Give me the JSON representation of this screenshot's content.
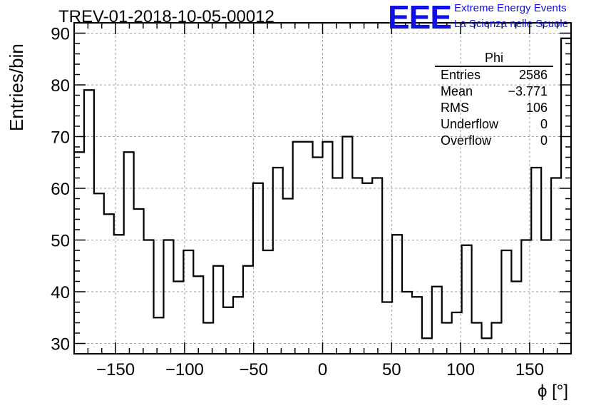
{
  "title": "TREV-01-2018-10-05-00012",
  "logo": {
    "mark": "EEE",
    "line1": "Extreme Energy Events",
    "line2": "La Scienza nelle Scuole",
    "color": "#1010e6"
  },
  "stats": {
    "title": "Phi",
    "rows": [
      {
        "label": "Entries",
        "value": "2586"
      },
      {
        "label": "Mean",
        "value": "−3.771"
      },
      {
        "label": "RMS",
        "value": "106"
      },
      {
        "label": "Underflow",
        "value": "0"
      },
      {
        "label": "Overflow",
        "value": "0"
      }
    ]
  },
  "chart_data": {
    "type": "bar",
    "style": "step-histogram",
    "title": "TREV-01-2018-10-05-00012",
    "xlabel": "ϕ [°]",
    "ylabel": "Entries/bin",
    "xlim": [
      -180,
      180
    ],
    "ylim": [
      28,
      92
    ],
    "bin_width": 7.2,
    "x_ticks": [
      -150,
      -100,
      -50,
      0,
      50,
      100,
      150
    ],
    "x_tick_labels": [
      "−150",
      "−100",
      "−50",
      "0",
      "50",
      "100",
      "150"
    ],
    "y_ticks": [
      30,
      40,
      50,
      60,
      70,
      80,
      90
    ],
    "y_tick_labels": [
      "30",
      "40",
      "50",
      "60",
      "70",
      "80",
      "90"
    ],
    "grid": true,
    "values": [
      67,
      79,
      59,
      55,
      51,
      67,
      56,
      50,
      35,
      50,
      42,
      48,
      43,
      34,
      45,
      37,
      39,
      45,
      61,
      48,
      64,
      58,
      69,
      69,
      66,
      69,
      62,
      70,
      62,
      61,
      62,
      38,
      51,
      40,
      39,
      31,
      41,
      34,
      36,
      49,
      34,
      31,
      34,
      48,
      42,
      50,
      64,
      50,
      62,
      89
    ],
    "line_color": "#000000"
  }
}
